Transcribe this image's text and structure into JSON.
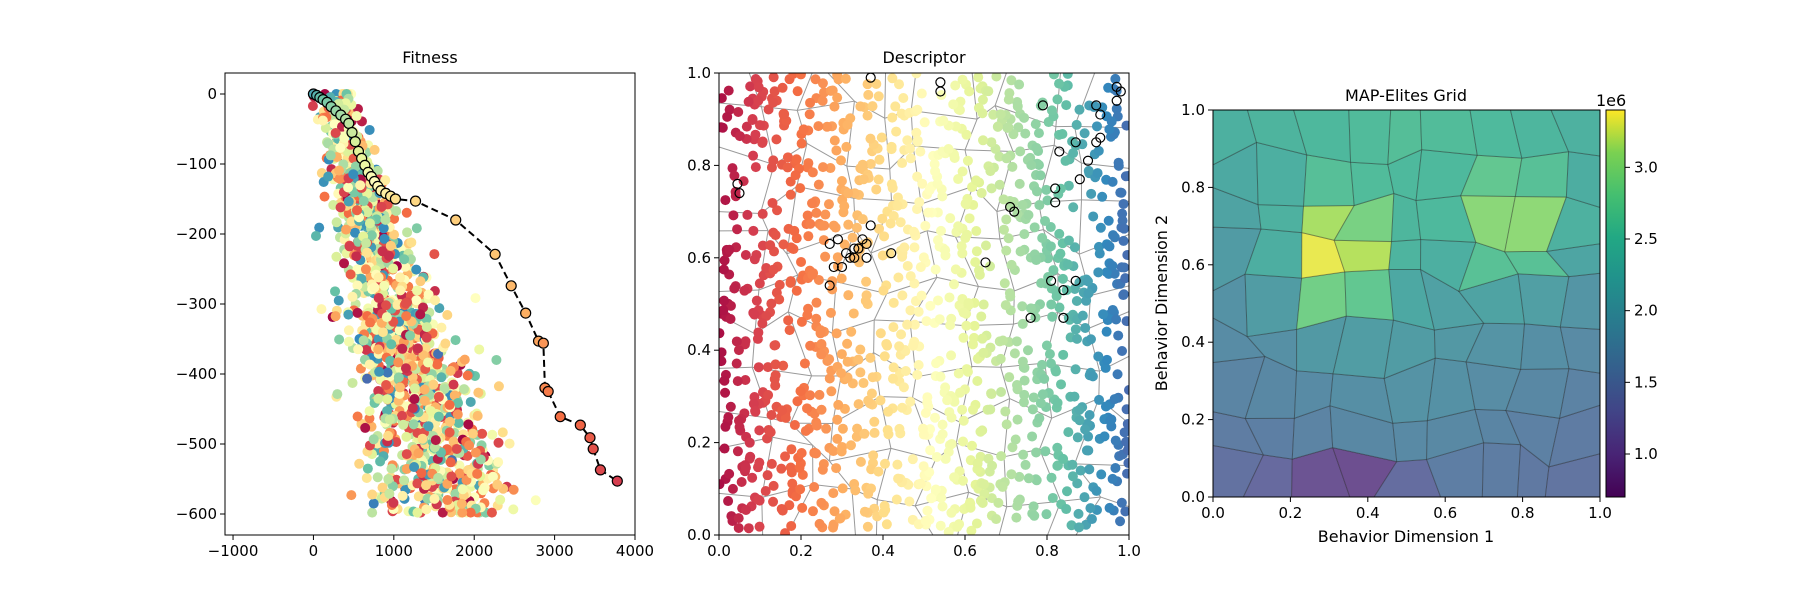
{
  "chart_data": [
    {
      "type": "scatter",
      "title": "Fitness",
      "xlim": [
        -1100,
        4000
      ],
      "ylim": [
        -630,
        30
      ],
      "xticks": [
        -1000,
        0,
        1000,
        2000,
        3000,
        4000
      ],
      "xtick_labels": [
        "−1000",
        "0",
        "1000",
        "2000",
        "3000",
        "4000"
      ],
      "yticks": [
        0,
        -100,
        -200,
        -300,
        -400,
        -500,
        -600
      ],
      "ytick_labels": [
        "0",
        "−100",
        "−200",
        "−300",
        "−400",
        "−500",
        "−600"
      ],
      "grid": false,
      "colormap": "Spectral",
      "point_count": 1400,
      "pareto_front": {
        "style": "black dashed line with hollow black-edged markers",
        "x": [
          0,
          40,
          80,
          120,
          170,
          220,
          280,
          340,
          400,
          440,
          480,
          520,
          560,
          600,
          640,
          680,
          720,
          760,
          800,
          840,
          900,
          960,
          1020,
          1270,
          1770,
          2260,
          2460,
          2640,
          2800,
          2860,
          2880,
          2920,
          3070,
          3320,
          3440,
          3480,
          3570,
          3780
        ],
        "y": [
          0,
          -2,
          -5,
          -8,
          -12,
          -18,
          -24,
          -30,
          -36,
          -42,
          -55,
          -68,
          -82,
          -92,
          -102,
          -112,
          -118,
          -125,
          -132,
          -138,
          -142,
          -146,
          -150,
          -153,
          -180,
          -229,
          -274,
          -313,
          -353,
          -356,
          -420,
          -425,
          -461,
          -473,
          -491,
          -507,
          -537,
          -553
        ]
      }
    },
    {
      "type": "scatter",
      "title": "Descriptor",
      "xlim": [
        0.0,
        1.0
      ],
      "ylim": [
        0.0,
        1.0
      ],
      "xticks": [
        0.0,
        0.2,
        0.4,
        0.6,
        0.8,
        1.0
      ],
      "xtick_labels": [
        "0.0",
        "0.2",
        "0.4",
        "0.6",
        "0.8",
        "1.0"
      ],
      "yticks": [
        0.0,
        0.2,
        0.4,
        0.6,
        0.8,
        1.0
      ],
      "ytick_labels": [
        "0.0",
        "0.2",
        "0.4",
        "0.6",
        "0.8",
        "1.0"
      ],
      "grid": false,
      "colormap": "Spectral (by x)",
      "point_count": 1200,
      "overlay": "Voronoi cell boundaries (grey)",
      "highlighted_points": {
        "style": "hollow black-edged circles",
        "x": [
          0.045,
          0.05,
          0.37,
          0.54,
          0.54,
          0.79,
          0.83,
          0.71,
          0.87,
          0.92,
          0.93,
          0.97,
          0.97,
          0.98,
          0.88,
          0.92,
          0.93,
          0.9,
          0.82,
          0.82,
          0.27,
          0.28,
          0.3,
          0.32,
          0.34,
          0.36,
          0.37,
          0.33,
          0.35,
          0.31,
          0.42,
          0.65,
          0.72,
          0.81,
          0.84,
          0.87,
          0.84,
          0.76,
          0.27,
          0.29,
          0.33,
          0.34,
          0.36
        ],
        "y": [
          0.76,
          0.74,
          0.99,
          0.98,
          0.96,
          0.93,
          0.83,
          0.71,
          0.85,
          0.93,
          0.91,
          0.97,
          0.94,
          0.96,
          0.77,
          0.85,
          0.86,
          0.81,
          0.75,
          0.72,
          0.54,
          0.58,
          0.58,
          0.6,
          0.62,
          0.63,
          0.67,
          0.62,
          0.64,
          0.61,
          0.61,
          0.59,
          0.7,
          0.55,
          0.53,
          0.55,
          0.47,
          0.47,
          0.63,
          0.64,
          0.6,
          0.62,
          0.6
        ]
      }
    },
    {
      "type": "heatmap",
      "subtype": "voronoi",
      "title": "MAP-Elites Grid",
      "xlabel": "Behavior Dimension 1",
      "ylabel": "Behavior Dimension 2",
      "xlim": [
        0.0,
        1.0
      ],
      "ylim": [
        0.0,
        1.0
      ],
      "xticks": [
        0.0,
        0.2,
        0.4,
        0.6,
        0.8,
        1.0
      ],
      "xtick_labels": [
        "0.0",
        "0.2",
        "0.4",
        "0.6",
        "0.8",
        "1.0"
      ],
      "yticks": [
        0.0,
        0.2,
        0.4,
        0.6,
        0.8,
        1.0
      ],
      "ytick_labels": [
        "0.0",
        "0.2",
        "0.4",
        "0.6",
        "0.8",
        "1.0"
      ],
      "colormap": "viridis",
      "colorbar": {
        "range": [
          0.7,
          3.4
        ],
        "ticks": [
          1.0,
          1.5,
          2.0,
          2.5,
          3.0
        ],
        "tick_labels": [
          "1.0",
          "1.5",
          "2.0",
          "2.5",
          "3.0"
        ],
        "exponent_label": "1e6"
      }
    }
  ]
}
